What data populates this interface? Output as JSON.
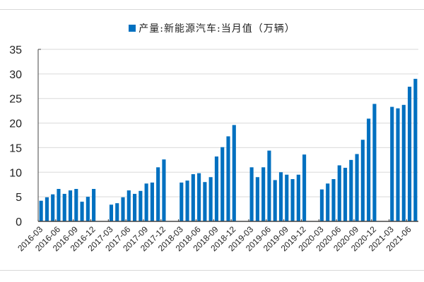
{
  "chart_data": {
    "type": "bar",
    "title": "",
    "legend": [
      {
        "label": "产量:新能源汽车:当月值（万辆）",
        "color": "#0070C0"
      }
    ],
    "xlabel": "",
    "ylabel": "",
    "ylim": [
      0,
      35
    ],
    "yticks": [
      0,
      5,
      10,
      15,
      20,
      25,
      30,
      35
    ],
    "grid": true,
    "legend_position": "top",
    "x_tick_labels": [
      "2016-03",
      "2016-06",
      "2016-09",
      "2016-12",
      "2017-03",
      "2017-06",
      "2017-09",
      "2017-12",
      "2018-03",
      "2018-06",
      "2018-09",
      "2018-12",
      "2019-03",
      "2019-06",
      "2019-09",
      "2019-12",
      "2020-03",
      "2020-06",
      "2020-09",
      "2020-12",
      "2021-03",
      "2021-06"
    ],
    "categories": [
      "2016-03",
      "2016-04",
      "2016-05",
      "2016-06",
      "2016-07",
      "2016-08",
      "2016-09",
      "2016-10",
      "2016-11",
      "2016-12",
      "2017-01",
      "2017-02",
      "2017-03",
      "2017-04",
      "2017-05",
      "2017-06",
      "2017-07",
      "2017-08",
      "2017-09",
      "2017-10",
      "2017-11",
      "2017-12",
      "2018-01",
      "2018-02",
      "2018-03",
      "2018-04",
      "2018-05",
      "2018-06",
      "2018-07",
      "2018-08",
      "2018-09",
      "2018-10",
      "2018-11",
      "2018-12",
      "2019-01",
      "2019-02",
      "2019-03",
      "2019-04",
      "2019-05",
      "2019-06",
      "2019-07",
      "2019-08",
      "2019-09",
      "2019-10",
      "2019-11",
      "2019-12",
      "2020-01",
      "2020-02",
      "2020-03",
      "2020-04",
      "2020-05",
      "2020-06",
      "2020-07",
      "2020-08",
      "2020-09",
      "2020-10",
      "2020-11",
      "2020-12",
      "2021-01",
      "2021-02",
      "2021-03",
      "2021-04",
      "2021-05",
      "2021-06",
      "2021-07"
    ],
    "series": [
      {
        "name": "产量:新能源汽车:当月值（万辆）",
        "values": [
          4.2,
          4.9,
          5.5,
          6.6,
          5.6,
          6.3,
          6.6,
          4.0,
          5.0,
          6.6,
          null,
          null,
          3.4,
          3.7,
          4.9,
          6.3,
          5.6,
          6.2,
          7.7,
          7.9,
          11.0,
          12.6,
          null,
          null,
          7.9,
          8.3,
          9.6,
          9.8,
          8.0,
          9.0,
          13.2,
          15.1,
          17.3,
          19.6,
          null,
          null,
          11.0,
          9.0,
          11.0,
          14.4,
          8.4,
          10.0,
          9.5,
          8.6,
          9.5,
          13.6,
          null,
          null,
          6.5,
          7.7,
          8.6,
          11.4,
          10.9,
          12.5,
          13.7,
          16.6,
          20.9,
          23.9,
          null,
          null,
          23.3,
          23.0,
          23.7,
          27.4,
          29.0
        ]
      }
    ]
  }
}
